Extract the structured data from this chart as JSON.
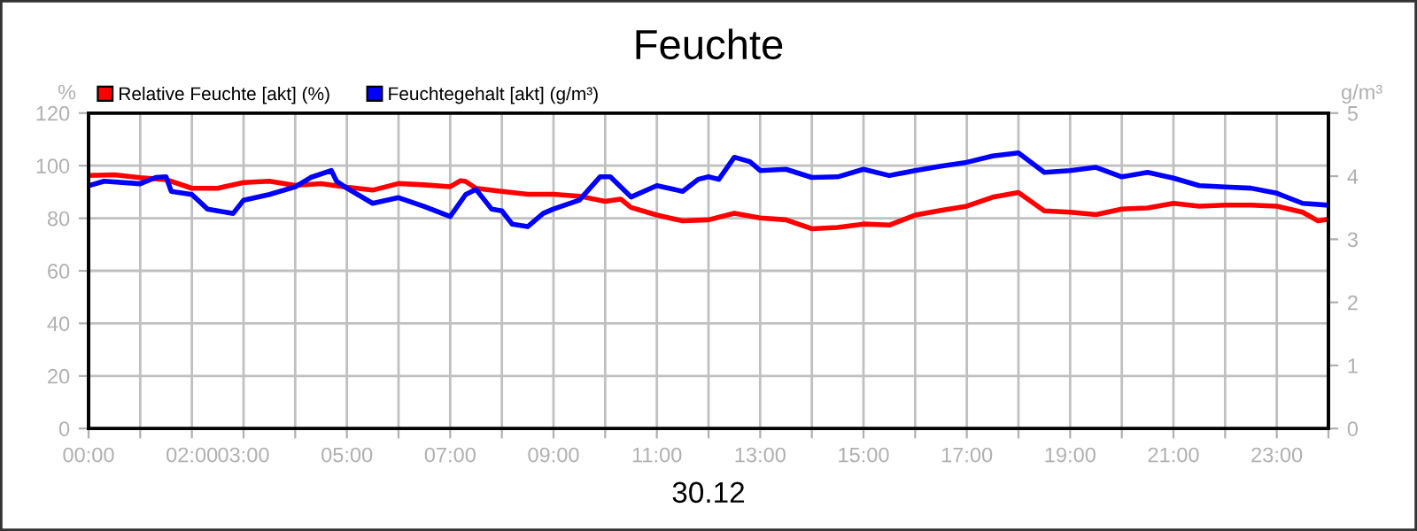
{
  "chart_data": {
    "type": "line",
    "title": "Feuchte",
    "xlabel": "30.12",
    "ylabel": "%",
    "y2label": "g/m³",
    "xlim": [
      0,
      24
    ],
    "xticks": [
      {
        "value": 0,
        "label": "00:00"
      },
      {
        "value": 1,
        "label": null
      },
      {
        "value": 2,
        "label": "02:00"
      },
      {
        "value": 3,
        "label": "03:00"
      },
      {
        "value": 4,
        "label": null
      },
      {
        "value": 5,
        "label": "05:00"
      },
      {
        "value": 6,
        "label": null
      },
      {
        "value": 7,
        "label": "07:00"
      },
      {
        "value": 8,
        "label": null
      },
      {
        "value": 9,
        "label": "09:00"
      },
      {
        "value": 10,
        "label": null
      },
      {
        "value": 11,
        "label": "11:00"
      },
      {
        "value": 12,
        "label": null
      },
      {
        "value": 13,
        "label": "13:00"
      },
      {
        "value": 14,
        "label": null
      },
      {
        "value": 15,
        "label": "15:00"
      },
      {
        "value": 16,
        "label": null
      },
      {
        "value": 17,
        "label": "17:00"
      },
      {
        "value": 18,
        "label": null
      },
      {
        "value": 19,
        "label": "19:00"
      },
      {
        "value": 20,
        "label": null
      },
      {
        "value": 21,
        "label": "21:00"
      },
      {
        "value": 22,
        "label": null
      },
      {
        "value": 23,
        "label": "23:00"
      },
      {
        "value": 24,
        "label": null
      }
    ],
    "ylim": [
      0,
      120
    ],
    "yticks": [
      0,
      20,
      40,
      60,
      80,
      100,
      120
    ],
    "y2lim": [
      0,
      5
    ],
    "y2ticks": [
      0,
      1,
      2,
      3,
      4,
      5
    ],
    "grid": true,
    "legend": "top left",
    "marker": "none",
    "line_style": "solid",
    "series": [
      {
        "name": "Relative Feuchte [akt] (%)",
        "color": "#ff0000",
        "x": [
          0,
          0.5,
          1,
          1.5,
          2,
          2.5,
          3,
          3.5,
          4,
          4.5,
          5,
          5.5,
          6,
          6.5,
          7,
          7.2,
          7.3,
          7.5,
          8,
          8.5,
          9,
          9.5,
          10,
          10.3,
          10.5,
          11,
          11.5,
          12,
          12.5,
          13,
          13.5,
          14,
          14.5,
          15,
          15.5,
          16,
          16.5,
          17,
          17.5,
          18,
          18.5,
          19,
          19.5,
          20,
          20.5,
          21,
          21.5,
          22,
          22.5,
          23,
          23.5,
          23.8,
          24
        ],
        "values": [
          96.3,
          96.5,
          95.4,
          94.7,
          91.4,
          91.4,
          93.6,
          94.1,
          92.5,
          93.2,
          91.8,
          90.7,
          93.2,
          92.7,
          92.0,
          94.3,
          94.0,
          91.4,
          90.2,
          89.1,
          89.1,
          88.4,
          86.4,
          87.3,
          84.1,
          81.2,
          79.0,
          79.4,
          81.9,
          80.1,
          79.4,
          76.0,
          76.5,
          77.8,
          77.4,
          81.2,
          83.0,
          84.6,
          88.0,
          89.8,
          82.8,
          82.3,
          81.4,
          83.5,
          83.9,
          85.7,
          84.6,
          85.0,
          85.0,
          84.6,
          82.3,
          79.0,
          79.6
        ]
      },
      {
        "name": "Feuchtegehalt [akt] (g/m³)",
        "color": "#0000ff",
        "axis": "y2",
        "x": [
          0,
          0.3,
          1,
          1.3,
          1.5,
          1.6,
          2,
          2.3,
          2.5,
          2.8,
          3,
          3.5,
          4,
          4.3,
          4.7,
          4.8,
          5,
          5.5,
          6,
          6.5,
          7,
          7.3,
          7.5,
          7.8,
          8,
          8.2,
          8.5,
          8.8,
          9,
          9.5,
          9.9,
          10.1,
          10.5,
          11,
          11.5,
          11.8,
          12,
          12.2,
          12.5,
          12.8,
          13,
          13.5,
          14,
          14.5,
          15,
          15.5,
          16,
          16.5,
          17,
          17.5,
          18,
          18.5,
          19,
          19.5,
          20,
          20.5,
          21,
          21.5,
          22,
          22.5,
          23,
          23.5,
          24
        ],
        "values": [
          3.85,
          3.92,
          3.88,
          3.98,
          3.99,
          3.76,
          3.71,
          3.48,
          3.45,
          3.41,
          3.62,
          3.71,
          3.83,
          3.98,
          4.09,
          3.92,
          3.81,
          3.57,
          3.66,
          3.52,
          3.36,
          3.71,
          3.79,
          3.48,
          3.45,
          3.24,
          3.2,
          3.41,
          3.48,
          3.62,
          3.99,
          3.99,
          3.67,
          3.85,
          3.76,
          3.95,
          3.99,
          3.95,
          4.3,
          4.23,
          4.09,
          4.11,
          3.98,
          3.99,
          4.11,
          4.01,
          4.09,
          4.16,
          4.22,
          4.32,
          4.37,
          4.06,
          4.09,
          4.14,
          3.99,
          4.06,
          3.97,
          3.85,
          3.83,
          3.81,
          3.73,
          3.57,
          3.54
        ]
      }
    ]
  }
}
